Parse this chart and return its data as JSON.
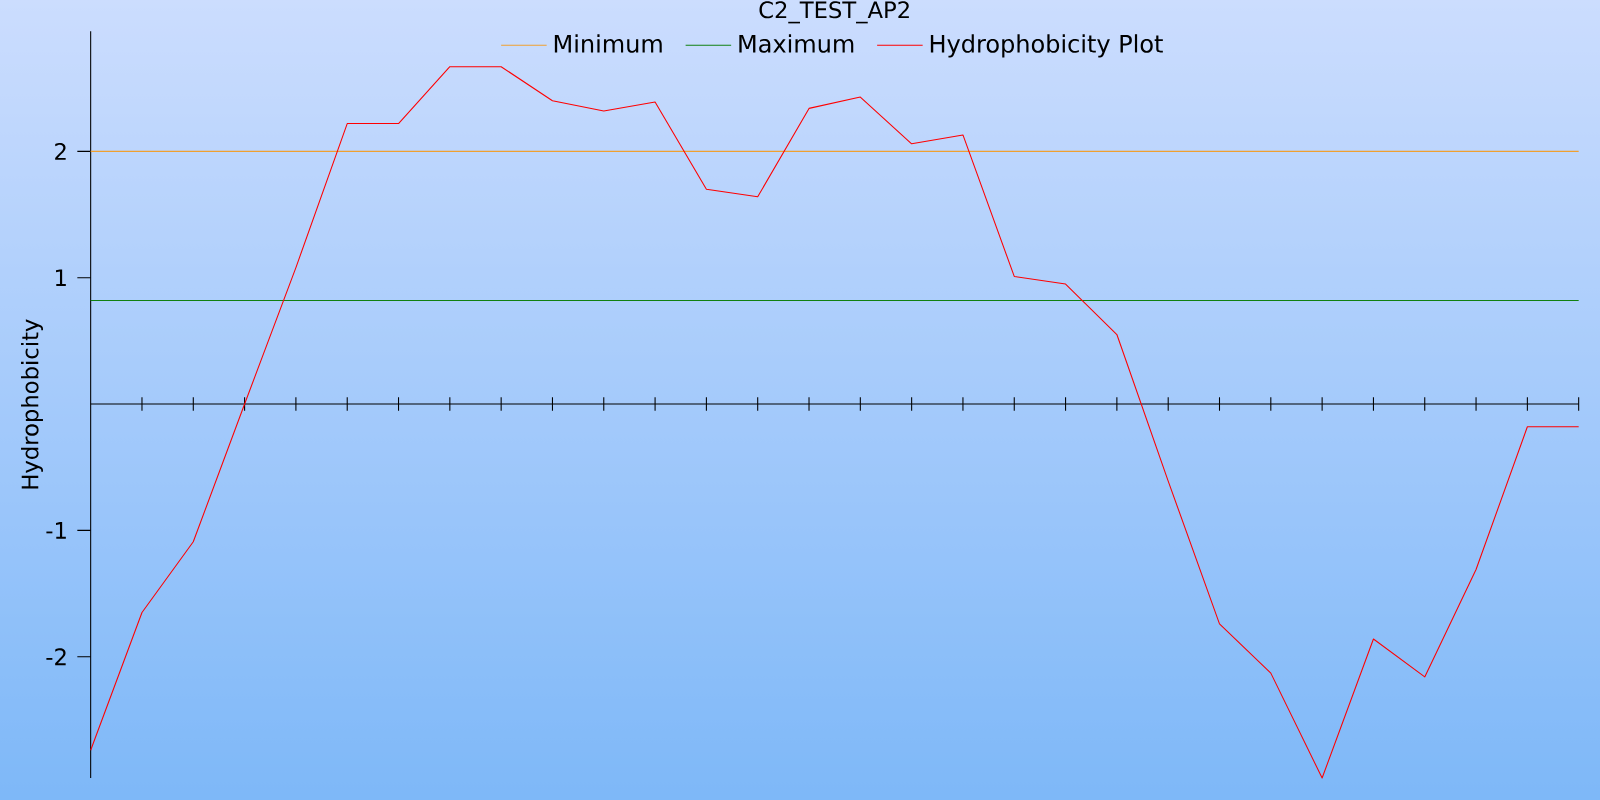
{
  "chart_data": {
    "type": "line",
    "title": "C2_TEST_AP2",
    "ylabel": "Hydrophobicity",
    "categories": [
      null,
      null,
      null,
      null,
      null,
      null,
      null,
      null,
      null,
      null,
      null,
      null,
      null,
      null,
      null,
      null,
      null,
      null,
      null,
      null,
      null,
      null,
      null,
      null,
      null,
      null,
      null,
      null,
      null,
      null
    ],
    "series": [
      {
        "name": "Minimum",
        "color": "#f0a030",
        "values": [
          2,
          2,
          2,
          2,
          2,
          2,
          2,
          2,
          2,
          2,
          2,
          2,
          2,
          2,
          2,
          2,
          2,
          2,
          2,
          2,
          2,
          2,
          2,
          2,
          2,
          2,
          2,
          2,
          2,
          2
        ]
      },
      {
        "name": "Maximum",
        "color": "#108010",
        "values": [
          0.82,
          0.82,
          0.82,
          0.82,
          0.82,
          0.82,
          0.82,
          0.82,
          0.82,
          0.82,
          0.82,
          0.82,
          0.82,
          0.82,
          0.82,
          0.82,
          0.82,
          0.82,
          0.82,
          0.82,
          0.82,
          0.82,
          0.82,
          0.82,
          0.82,
          0.82,
          0.82,
          0.82,
          0.82,
          0.82
        ]
      },
      {
        "name": "Hydrophobicity Plot",
        "color": "#ff0000",
        "values": [
          -2.74,
          -1.65,
          -1.09,
          0.0,
          1.08,
          2.22,
          2.22,
          2.67,
          2.67,
          2.4,
          2.32,
          2.39,
          1.7,
          1.64,
          2.34,
          2.43,
          2.06,
          2.13,
          1.01,
          0.95,
          0.55,
          -0.61,
          -1.74,
          -2.13,
          -2.96,
          -1.86,
          -2.16,
          -1.31,
          -0.18,
          -0.18
        ]
      }
    ],
    "ylim": [
      -2.96,
      2.95
    ],
    "yticks": [
      -2,
      -1,
      1,
      2
    ],
    "grid": false,
    "legend": "top",
    "marker": "none",
    "line_style": "solid"
  }
}
